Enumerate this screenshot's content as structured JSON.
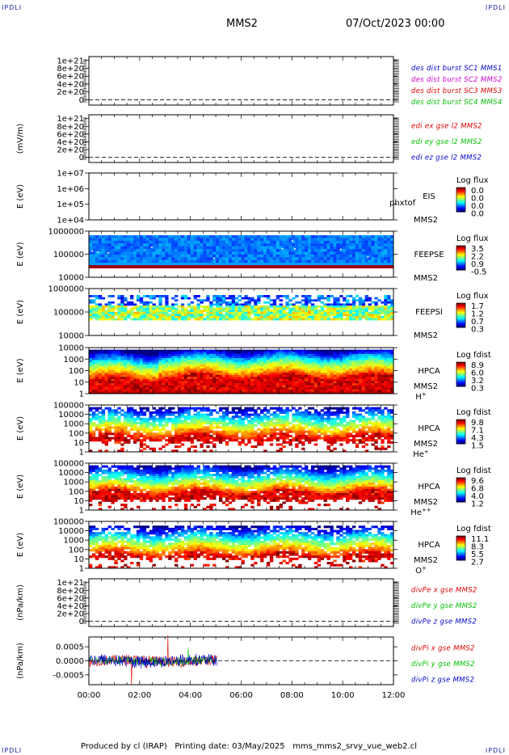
{
  "header": {
    "corner_label": "IPDLI",
    "mission": "MMS2",
    "datetime": "07/Oct/2023 00:00"
  },
  "footer": {
    "text": "Produced by cl (IRAP)   Printing date: 03/May/2025   mms_mms2_srvy_vue_web2.cl"
  },
  "colors": {
    "red": "#e00000",
    "magenta": "#d000d0",
    "green": "#00c000",
    "blue": "#0000c8"
  },
  "chart_data": {
    "type": "multi-panel",
    "x_ticks": [
      "00:00",
      "02:00",
      "04:00",
      "06:00",
      "08:00",
      "10:00",
      "12:00"
    ],
    "panels": [
      {
        "id": "des-dist",
        "type": "line",
        "ylabel": "",
        "y_ticks": [
          "1e+21",
          "8e+20",
          "6e+20",
          "4e+20",
          "2e+20",
          "0"
        ],
        "legend": [
          {
            "text": "des dist burst SC1 MMS1",
            "color": "#0000c8"
          },
          {
            "text": "des dist burst SC2 MMS2",
            "color": "#d000d0"
          },
          {
            "text": "des dist burst SC3 MMS3",
            "color": "#e00000"
          },
          {
            "text": "des dist burst SC4 MMS4",
            "color": "#00c000"
          }
        ]
      },
      {
        "id": "edi-e",
        "type": "line",
        "ylabel": "(mV/m)",
        "y_ticks": [
          "1e+21",
          "8e+20",
          "6e+20",
          "4e+20",
          "2e+20",
          "0"
        ],
        "legend": [
          {
            "text": "edi ex gse l2 MMS2",
            "color": "#e00000"
          },
          {
            "text": "edi ey gse l2 MMS2",
            "color": "#00c000"
          },
          {
            "text": "edi ez gse l2 MMS2",
            "color": "#0000c8"
          }
        ]
      },
      {
        "id": "eis",
        "type": "heatmap",
        "ylabel": "E (eV)",
        "y_ticks": [
          "1e+07",
          "1e+06",
          "1e+05",
          "1e+04"
        ],
        "instrument": [
          "EIS",
          "MMS2"
        ],
        "overlay": "phxtof",
        "colorbar_title": "Log flux",
        "colorbar_ticks": [
          "0.0",
          "0.0",
          "0.0",
          "0.0"
        ]
      },
      {
        "id": "feeps-e",
        "type": "heatmap",
        "ylabel": "E (eV)",
        "y_ticks": [
          "1000000",
          "100000",
          "10000"
        ],
        "instrument": [
          "FEEPSE",
          "MMS2"
        ],
        "colorbar_title": "Log flux",
        "colorbar_ticks": [
          "3.5",
          "2.2",
          "0.9",
          "-0.5"
        ]
      },
      {
        "id": "feeps-i",
        "type": "heatmap",
        "ylabel": "E (eV)",
        "y_ticks": [
          "1000000",
          "100000",
          "10000"
        ],
        "instrument": [
          "FEEPSI",
          "MMS2"
        ],
        "colorbar_title": "Log flux",
        "colorbar_ticks": [
          "1.7",
          "1.2",
          "0.7",
          "0.3"
        ]
      },
      {
        "id": "hpca-h",
        "type": "heatmap",
        "ylabel": "E (eV)",
        "y_ticks": [
          "10000",
          "1000",
          "100",
          "10",
          "1"
        ],
        "instrument": [
          "HPCA",
          "MMS2"
        ],
        "species": "H",
        "species_sup": "+",
        "colorbar_title": "Log fdist",
        "colorbar_ticks": [
          "8.9",
          "6.0",
          "3.2",
          "0.3"
        ]
      },
      {
        "id": "hpca-he",
        "type": "heatmap",
        "ylabel": "E (eV)",
        "y_ticks": [
          "100000",
          "10000",
          "1000",
          "100",
          "10",
          "1"
        ],
        "instrument": [
          "HPCA",
          "MMS2"
        ],
        "species": "He",
        "species_sup": "+",
        "colorbar_title": "Log fdist",
        "colorbar_ticks": [
          "9.8",
          "7.1",
          "4.3",
          "1.5"
        ]
      },
      {
        "id": "hpca-hepp",
        "type": "heatmap",
        "ylabel": "E (eV)",
        "y_ticks": [
          "100000",
          "10000",
          "1000",
          "100",
          "10",
          "1"
        ],
        "instrument": [
          "HPCA",
          "MMS2"
        ],
        "species": "He",
        "species_sup": "++",
        "colorbar_title": "Log fdist",
        "colorbar_ticks": [
          "9.6",
          "6.8",
          "4.0",
          "1.2"
        ]
      },
      {
        "id": "hpca-o",
        "type": "heatmap",
        "ylabel": "E (eV)",
        "y_ticks": [
          "100000",
          "10000",
          "1000",
          "100",
          "10",
          "1"
        ],
        "instrument": [
          "HPCA",
          "MMS2"
        ],
        "species": "O",
        "species_sup": "+",
        "colorbar_title": "Log fdist",
        "colorbar_ticks": [
          "11.1",
          "8.3",
          "5.5",
          "2.7"
        ]
      },
      {
        "id": "divpe",
        "type": "line",
        "ylabel": "(nPa/km)",
        "y_ticks": [
          "1e+21",
          "8e+20",
          "6e+20",
          "4e+20",
          "2e+20",
          "0"
        ],
        "legend": [
          {
            "text": "divPe x gse MMS2",
            "color": "#e00000"
          },
          {
            "text": "divPe y gse MMS2",
            "color": "#00c000"
          },
          {
            "text": "divPe z gse MMS2",
            "color": "#0000c8"
          }
        ]
      },
      {
        "id": "divpi",
        "type": "line",
        "ylabel": "(nPa/km)",
        "y_ticks": [
          "0.0005",
          "0.0000",
          "-0.0005"
        ],
        "ylim": [
          -0.00085,
          0.00085
        ],
        "data_end_hour": 5.05,
        "legend": [
          {
            "text": "divPi x gse MMS2",
            "color": "#e00000"
          },
          {
            "text": "divPi y gse MMS2",
            "color": "#00c000"
          },
          {
            "text": "divPi z gse MMS2",
            "color": "#0000c8"
          }
        ]
      }
    ]
  }
}
